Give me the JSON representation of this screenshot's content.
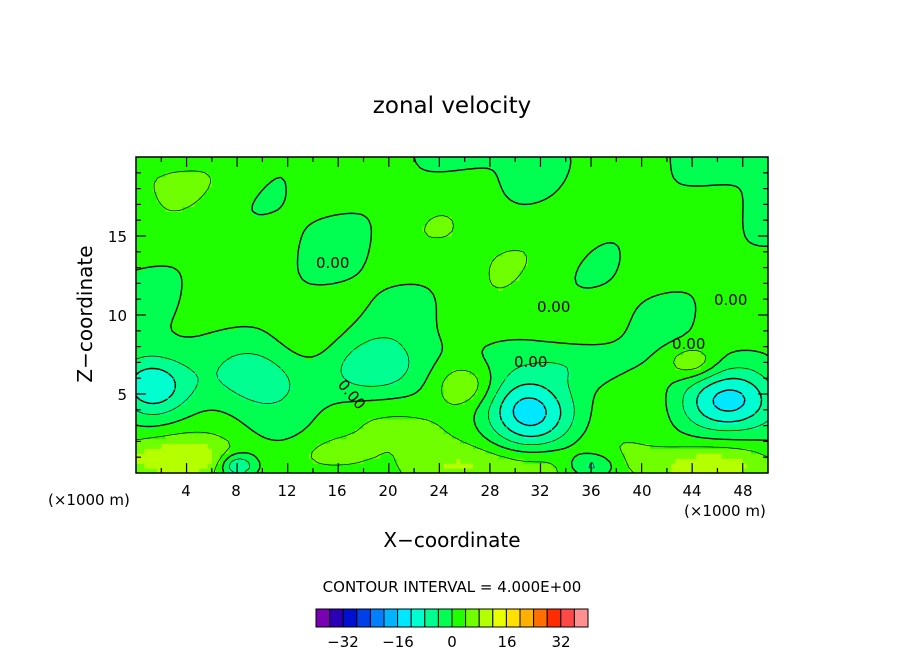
{
  "chart_data": {
    "type": "heatmap",
    "title": "zonal velocity",
    "xlabel": "X−coordinate",
    "ylabel": "Z−coordinate",
    "x_units": "(×1000 m)",
    "x_units_right": "(×1000 m)",
    "xlim": [
      0,
      50
    ],
    "ylim": [
      0,
      20
    ],
    "x_ticks": [
      "4",
      "8",
      "12",
      "16",
      "20",
      "24",
      "28",
      "32",
      "36",
      "40",
      "44",
      "48"
    ],
    "y_ticks": [
      "5",
      "10",
      "15"
    ],
    "contour_interval_text": "CONTOUR INTERVAL = 4.000E+00",
    "contour_labels": [
      "0.00",
      "0.00",
      "0.00",
      "0.00",
      "0.00",
      "0.00"
    ],
    "colorbar": {
      "tick_labels": [
        "−32",
        "−16",
        "0",
        "16",
        "32"
      ],
      "tick_values": [
        -32,
        -16,
        0,
        16,
        32
      ],
      "levels": [
        -40,
        -36,
        -32,
        -28,
        -24,
        -20,
        -16,
        -12,
        -8,
        -4,
        0,
        4,
        8,
        12,
        16,
        20,
        24,
        28,
        32,
        36,
        40
      ],
      "colors": [
        "#7a00b4",
        "#2b00b4",
        "#0010d0",
        "#0040e8",
        "#0080ff",
        "#00b4ff",
        "#00e8ff",
        "#00ffd0",
        "#00ff90",
        "#00ff50",
        "#20ff00",
        "#70ff00",
        "#b4ff00",
        "#e8ff00",
        "#ffe000",
        "#ffb000",
        "#ff7000",
        "#ff2c00",
        "#ff4848",
        "#ff9090"
      ]
    }
  }
}
